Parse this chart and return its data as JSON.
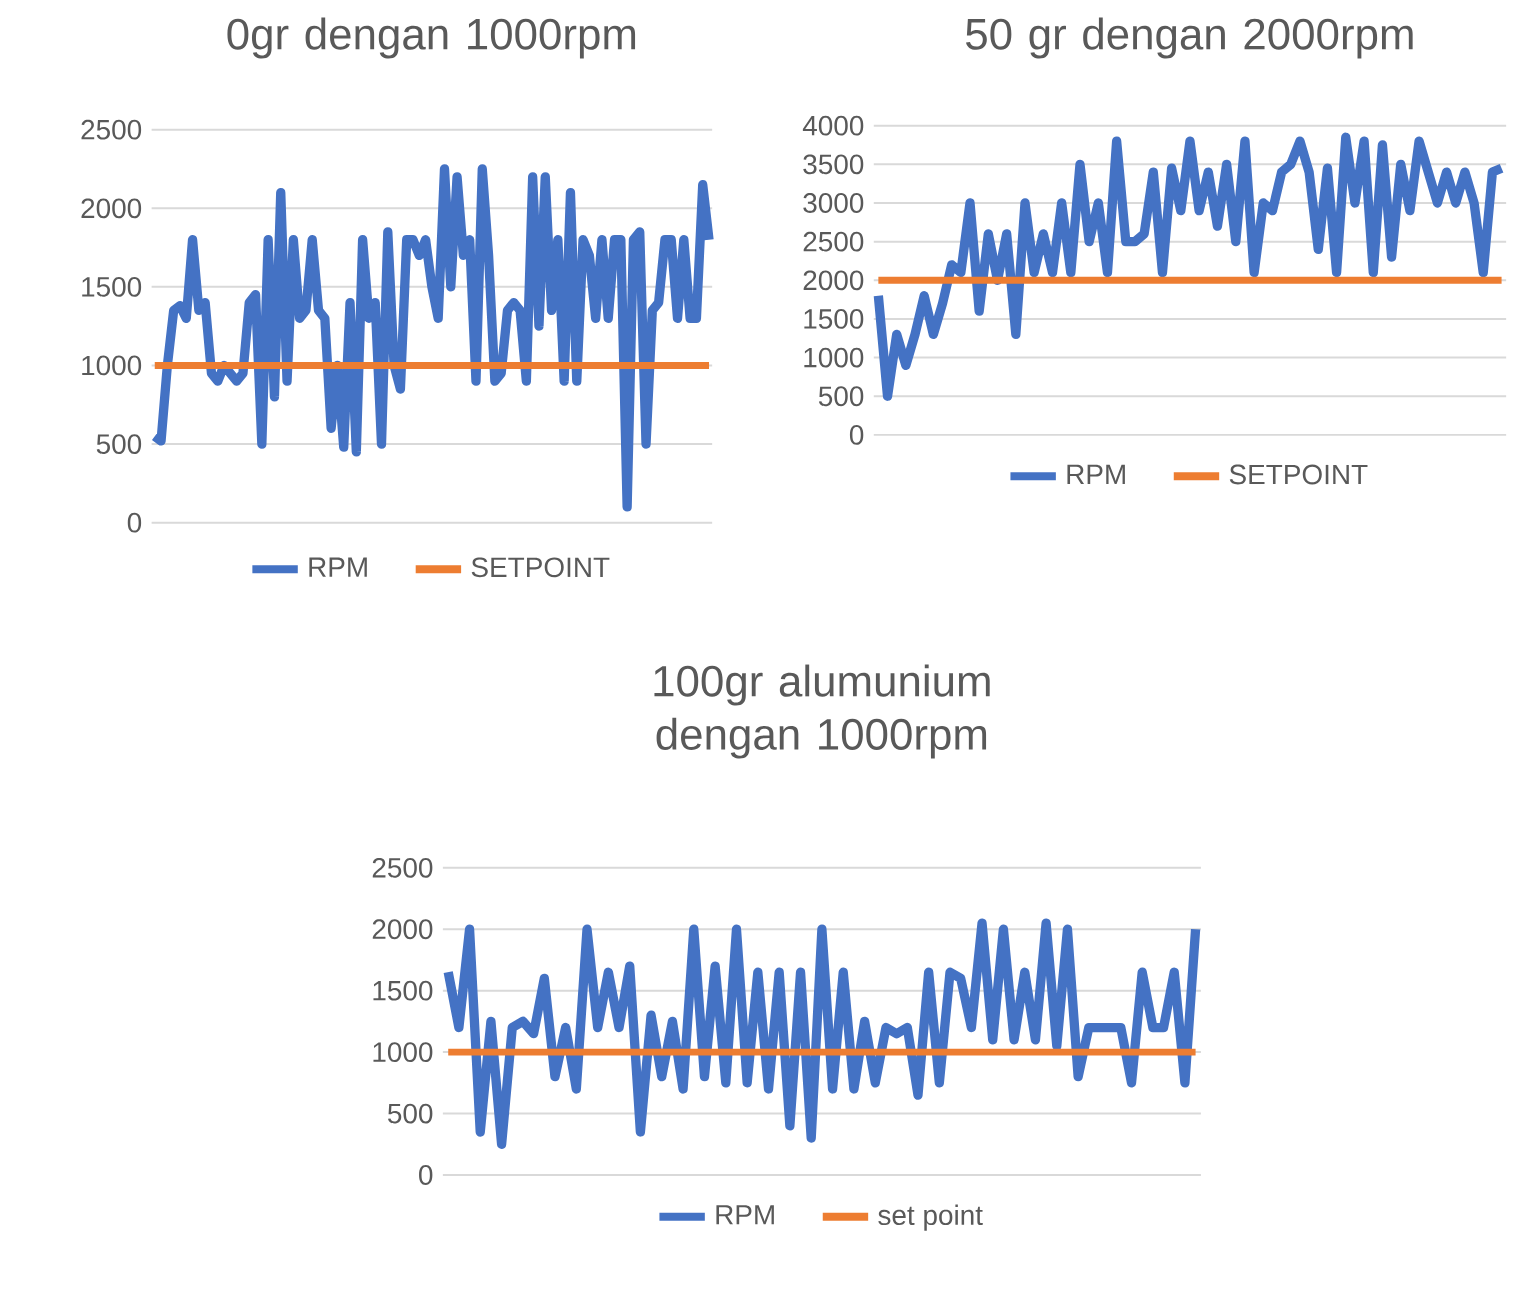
{
  "chart_data": [
    {
      "type": "line",
      "title": "0gr dengan 1000rpm",
      "categories": [
        null,
        null,
        null,
        null,
        null,
        null,
        null,
        null,
        null,
        null,
        null,
        null,
        null,
        null,
        null,
        null,
        null,
        null,
        null,
        null,
        null,
        null,
        null,
        null,
        null,
        null,
        null,
        null,
        null,
        null,
        null,
        null,
        null,
        null,
        null,
        null,
        null,
        null,
        null,
        null,
        null,
        null,
        null,
        null,
        null,
        null,
        null,
        null,
        null,
        null,
        null,
        null,
        null,
        null,
        null,
        null,
        null,
        null,
        null,
        null,
        null,
        null,
        null,
        null,
        null,
        null,
        null,
        null,
        null,
        null,
        null,
        null,
        null,
        null,
        null,
        null,
        null,
        null,
        null,
        null,
        null,
        null,
        null,
        null,
        null,
        null,
        null,
        null,
        null
      ],
      "ylim": [
        0,
        2500
      ],
      "yticks": [
        0,
        500,
        1000,
        1500,
        2000,
        2500
      ],
      "grid": "y",
      "legend": "bottom",
      "marker": "none",
      "line_style": "solid",
      "series": [
        {
          "name": "RPM",
          "color": "#4472c4",
          "values": [
            550,
            520,
            1000,
            1350,
            1380,
            1300,
            1800,
            1350,
            1400,
            950,
            900,
            1000,
            950,
            900,
            950,
            1400,
            1450,
            500,
            1800,
            800,
            2100,
            900,
            1800,
            1300,
            1350,
            1800,
            1350,
            1300,
            600,
            1000,
            480,
            1400,
            450,
            1800,
            1300,
            1400,
            500,
            1850,
            1000,
            850,
            1800,
            1800,
            1700,
            1800,
            1500,
            1300,
            2250,
            1500,
            2200,
            1700,
            1800,
            900,
            2250,
            1700,
            900,
            950,
            1350,
            1400,
            1350,
            900,
            2200,
            1250,
            2200,
            1350,
            1800,
            900,
            2100,
            900,
            1800,
            1700,
            1300,
            1800,
            1300,
            1800,
            1800,
            100,
            1800,
            1850,
            500,
            1350,
            1400,
            1800,
            1800,
            1300,
            1800,
            1300,
            1300,
            2150,
            1800
          ]
        },
        {
          "name": "SETPOINT",
          "color": "#ed7d31",
          "values": [
            1000,
            1000,
            1000,
            1000,
            1000,
            1000,
            1000,
            1000,
            1000,
            1000,
            1000,
            1000,
            1000,
            1000,
            1000,
            1000,
            1000,
            1000,
            1000,
            1000,
            1000,
            1000,
            1000,
            1000,
            1000,
            1000,
            1000,
            1000,
            1000,
            1000,
            1000,
            1000,
            1000,
            1000,
            1000,
            1000,
            1000,
            1000,
            1000,
            1000,
            1000,
            1000,
            1000,
            1000,
            1000,
            1000,
            1000,
            1000,
            1000,
            1000,
            1000,
            1000,
            1000,
            1000,
            1000,
            1000,
            1000,
            1000,
            1000,
            1000,
            1000,
            1000,
            1000,
            1000,
            1000,
            1000,
            1000,
            1000,
            1000,
            1000,
            1000,
            1000,
            1000,
            1000,
            1000,
            1000,
            1000,
            1000,
            1000,
            1000,
            1000,
            1000,
            1000,
            1000,
            1000,
            1000,
            1000,
            1000,
            1000
          ]
        }
      ]
    },
    {
      "type": "line",
      "title": "50 gr dengan 2000rpm",
      "categories": [
        null,
        null,
        null,
        null,
        null,
        null,
        null,
        null,
        null,
        null,
        null,
        null,
        null,
        null,
        null,
        null,
        null,
        null,
        null,
        null,
        null,
        null,
        null,
        null,
        null,
        null,
        null,
        null,
        null,
        null,
        null,
        null,
        null,
        null,
        null,
        null,
        null,
        null,
        null,
        null,
        null,
        null,
        null,
        null,
        null,
        null,
        null,
        null,
        null,
        null,
        null,
        null,
        null,
        null,
        null,
        null,
        null,
        null,
        null,
        null,
        null,
        null,
        null,
        null,
        null,
        null,
        null,
        null,
        null
      ],
      "ylim": [
        0,
        4000
      ],
      "yticks": [
        0,
        500,
        1000,
        1500,
        2000,
        2500,
        3000,
        3500,
        4000
      ],
      "grid": "y",
      "legend": "bottom",
      "marker": "none",
      "line_style": "solid",
      "series": [
        {
          "name": "RPM",
          "color": "#4472c4",
          "values": [
            1800,
            500,
            1300,
            900,
            1300,
            1800,
            1300,
            1700,
            2200,
            2100,
            3000,
            1600,
            2600,
            2000,
            2600,
            1300,
            3000,
            2100,
            2600,
            2100,
            3000,
            2100,
            3500,
            2500,
            3000,
            2100,
            3800,
            2500,
            2500,
            2600,
            3400,
            2100,
            3450,
            2900,
            3800,
            2900,
            3400,
            2700,
            3500,
            2500,
            3800,
            2100,
            3000,
            2900,
            3400,
            3500,
            3800,
            3400,
            2400,
            3450,
            2100,
            3850,
            3000,
            3800,
            2100,
            3750,
            2300,
            3500,
            2900,
            3800,
            3400,
            3000,
            3400,
            3000,
            3400,
            3000,
            2100,
            3400,
            3450
          ]
        },
        {
          "name": "SETPOINT",
          "color": "#ed7d31",
          "values": [
            2000,
            2000,
            2000,
            2000,
            2000,
            2000,
            2000,
            2000,
            2000,
            2000,
            2000,
            2000,
            2000,
            2000,
            2000,
            2000,
            2000,
            2000,
            2000,
            2000,
            2000,
            2000,
            2000,
            2000,
            2000,
            2000,
            2000,
            2000,
            2000,
            2000,
            2000,
            2000,
            2000,
            2000,
            2000,
            2000,
            2000,
            2000,
            2000,
            2000,
            2000,
            2000,
            2000,
            2000,
            2000,
            2000,
            2000,
            2000,
            2000,
            2000,
            2000,
            2000,
            2000,
            2000,
            2000,
            2000,
            2000,
            2000,
            2000,
            2000,
            2000,
            2000,
            2000,
            2000,
            2000,
            2000,
            2000,
            2000,
            2000
          ]
        }
      ]
    },
    {
      "type": "line",
      "title": "100gr alumunium dengan 1000rpm",
      "categories": [
        null,
        null,
        null,
        null,
        null,
        null,
        null,
        null,
        null,
        null,
        null,
        null,
        null,
        null,
        null,
        null,
        null,
        null,
        null,
        null,
        null,
        null,
        null,
        null,
        null,
        null,
        null,
        null,
        null,
        null,
        null,
        null,
        null,
        null,
        null,
        null,
        null,
        null,
        null,
        null,
        null,
        null,
        null,
        null,
        null,
        null,
        null,
        null,
        null,
        null,
        null,
        null,
        null,
        null,
        null,
        null,
        null,
        null,
        null,
        null,
        null,
        null,
        null,
        null,
        null,
        null,
        null,
        null,
        null,
        null,
        null
      ],
      "ylim": [
        0,
        2500
      ],
      "yticks": [
        0,
        500,
        1000,
        1500,
        2000,
        2500
      ],
      "grid": "y",
      "legend": "bottom",
      "marker": "none",
      "line_style": "solid",
      "series": [
        {
          "name": "RPM",
          "color": "#4472c4",
          "values": [
            1650,
            1200,
            2000,
            350,
            1250,
            250,
            1200,
            1250,
            1150,
            1600,
            800,
            1200,
            700,
            2000,
            1200,
            1650,
            1200,
            1700,
            350,
            1300,
            800,
            1250,
            700,
            2000,
            800,
            1700,
            750,
            2000,
            750,
            1650,
            700,
            1650,
            400,
            1650,
            300,
            2000,
            700,
            1650,
            700,
            1250,
            750,
            1200,
            1150,
            1200,
            650,
            1650,
            750,
            1650,
            1600,
            1200,
            2050,
            1100,
            2000,
            1100,
            1650,
            1100,
            2050,
            1050,
            2000,
            800,
            1200,
            1200,
            1200,
            1200,
            750,
            1650,
            1200,
            1200,
            1650,
            750,
            2000
          ]
        },
        {
          "name": "set point",
          "color": "#ed7d31",
          "values": [
            1000,
            1000,
            1000,
            1000,
            1000,
            1000,
            1000,
            1000,
            1000,
            1000,
            1000,
            1000,
            1000,
            1000,
            1000,
            1000,
            1000,
            1000,
            1000,
            1000,
            1000,
            1000,
            1000,
            1000,
            1000,
            1000,
            1000,
            1000,
            1000,
            1000,
            1000,
            1000,
            1000,
            1000,
            1000,
            1000,
            1000,
            1000,
            1000,
            1000,
            1000,
            1000,
            1000,
            1000,
            1000,
            1000,
            1000,
            1000,
            1000,
            1000,
            1000,
            1000,
            1000,
            1000,
            1000,
            1000,
            1000,
            1000,
            1000,
            1000,
            1000,
            1000,
            1000,
            1000,
            1000,
            1000,
            1000,
            1000,
            1000,
            1000,
            1000
          ]
        }
      ]
    }
  ]
}
